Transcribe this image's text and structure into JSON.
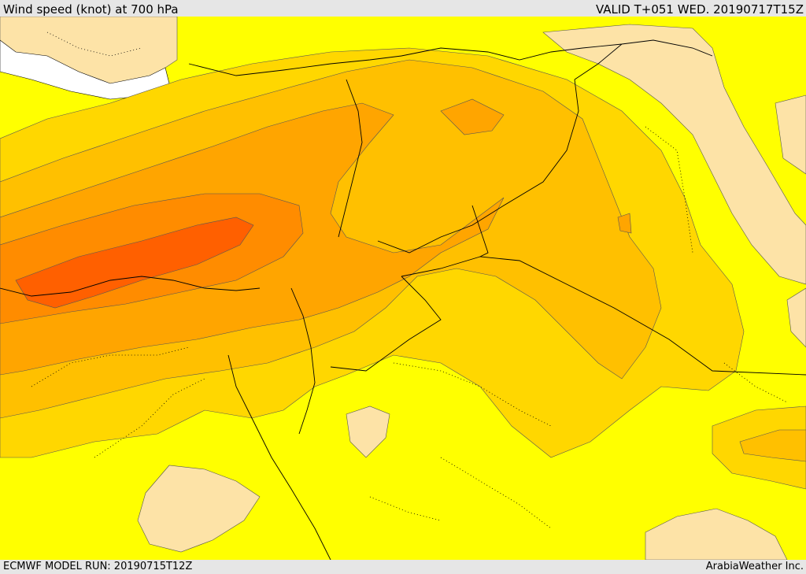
{
  "header": {
    "title": "Wind speed (knot) at 700 hPa",
    "valid_time": "VALID T+051 WED. 20190717T15Z"
  },
  "footer": {
    "model_run": "ECMWF MODEL RUN: 20190715T12Z",
    "credit": "ArabiaWeather Inc."
  },
  "colors": {
    "background_low": "#ffff00",
    "calm": "#fde3a7",
    "band_1": "#ffd700",
    "band_2": "#ffc000",
    "band_3": "#ffa500",
    "band_4": "#ff8c00",
    "band_5": "#ff6000",
    "sea": "#ffffff"
  }
}
